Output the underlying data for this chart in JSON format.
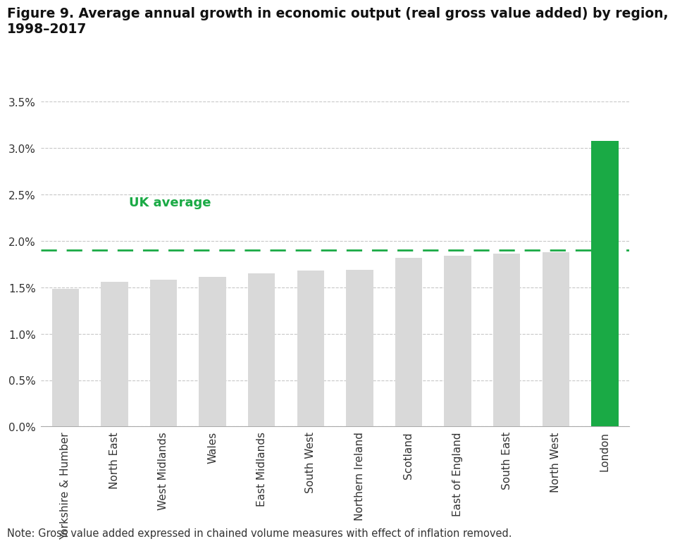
{
  "title_line1": "Figure 9. Average annual growth in economic output (real gross value added) by region,",
  "title_line2": "1998–2017",
  "categories": [
    "Yorkshire & Humber",
    "North East",
    "West Midlands",
    "Wales",
    "East Midlands",
    "South West",
    "Northern Ireland",
    "Scotland",
    "East of England",
    "South East",
    "North West",
    "London"
  ],
  "values": [
    0.0148,
    0.0156,
    0.0158,
    0.0161,
    0.0165,
    0.0168,
    0.0169,
    0.0182,
    0.0184,
    0.0186,
    0.0188,
    0.0308
  ],
  "bar_colors": [
    "#d9d9d9",
    "#d9d9d9",
    "#d9d9d9",
    "#d9d9d9",
    "#d9d9d9",
    "#d9d9d9",
    "#d9d9d9",
    "#d9d9d9",
    "#d9d9d9",
    "#d9d9d9",
    "#d9d9d9",
    "#1aaa45"
  ],
  "uk_average": 0.019,
  "uk_average_label": "UK average",
  "uk_average_color": "#1aaa45",
  "ylim": [
    0.0,
    0.035
  ],
  "yticks": [
    0.0,
    0.005,
    0.01,
    0.015,
    0.02,
    0.025,
    0.03,
    0.035
  ],
  "ytick_labels": [
    "0.0%",
    "0.5%",
    "1.0%",
    "1.5%",
    "2.0%",
    "2.5%",
    "3.0%",
    "3.5%"
  ],
  "note": "Note: Gross value added expressed in chained volume measures with effect of inflation removed.",
  "background_color": "#ffffff",
  "grid_color": "#c8c8c8",
  "title_fontsize": 13.5,
  "tick_fontsize": 11,
  "note_fontsize": 10.5,
  "uk_label_fontsize": 13
}
